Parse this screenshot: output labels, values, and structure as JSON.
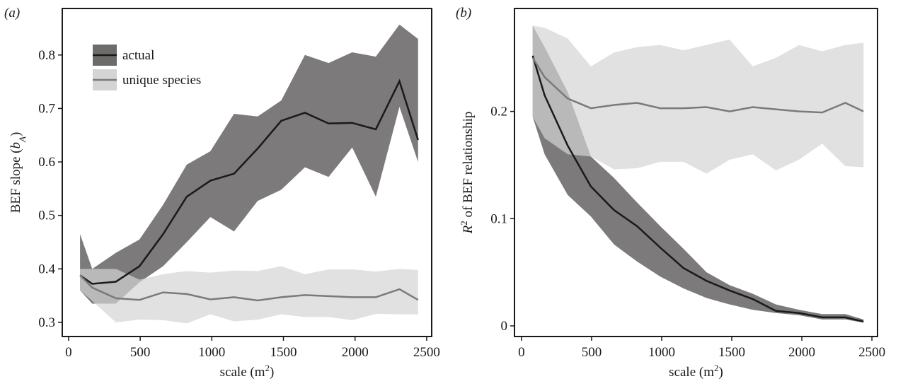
{
  "chart_data": [
    {
      "type": "line",
      "panel_label": "(a)",
      "x_label": [
        {
          "text": "scale (m"
        },
        {
          "text": "2",
          "sup": true
        },
        {
          "text": ")"
        }
      ],
      "y_label": [
        {
          "text": "BEF slope ("
        },
        {
          "text": "b",
          "italic": true
        },
        {
          "text": "A",
          "sub": true,
          "italic": true
        },
        {
          "text": ")"
        }
      ],
      "x": [
        80,
        165,
        330,
        495,
        660,
        825,
        990,
        1155,
        1320,
        1485,
        1650,
        1815,
        1980,
        2145,
        2310,
        2440
      ],
      "xlim": [
        -44,
        2535
      ],
      "xticks": [
        0,
        500,
        1000,
        1500,
        2000,
        2500
      ],
      "ylim": [
        0.2735,
        0.887
      ],
      "yticks": [
        0.3,
        0.4,
        0.5,
        0.6,
        0.7,
        0.8
      ],
      "legend": "upper left",
      "series": [
        {
          "name": "actual",
          "color": "#1a1a1a",
          "band_color": "#6e6b6b",
          "values": [
            0.388,
            0.372,
            0.376,
            0.405,
            0.465,
            0.535,
            0.565,
            0.578,
            0.625,
            0.677,
            0.692,
            0.672,
            0.673,
            0.661,
            0.751,
            0.641
          ],
          "upper": [
            0.465,
            0.4,
            0.43,
            0.455,
            0.52,
            0.595,
            0.62,
            0.69,
            0.685,
            0.715,
            0.8,
            0.785,
            0.805,
            0.797,
            0.857,
            0.83
          ],
          "lower": [
            0.36,
            0.335,
            0.335,
            0.375,
            0.405,
            0.45,
            0.497,
            0.47,
            0.527,
            0.548,
            0.59,
            0.572,
            0.627,
            0.535,
            0.703,
            0.6
          ]
        },
        {
          "name": "unique species",
          "color": "#7a7a7a",
          "band_color": "#d4d4d4",
          "values": [
            0.388,
            0.365,
            0.345,
            0.342,
            0.356,
            0.353,
            0.343,
            0.347,
            0.341,
            0.347,
            0.351,
            0.349,
            0.347,
            0.347,
            0.362,
            0.342
          ],
          "upper": [
            0.4,
            0.4,
            0.4,
            0.38,
            0.39,
            0.396,
            0.393,
            0.397,
            0.396,
            0.405,
            0.39,
            0.399,
            0.399,
            0.395,
            0.4,
            0.398
          ],
          "lower": [
            0.36,
            0.34,
            0.3,
            0.305,
            0.304,
            0.298,
            0.315,
            0.302,
            0.305,
            0.315,
            0.31,
            0.31,
            0.304,
            0.316,
            0.315,
            0.315
          ]
        }
      ]
    },
    {
      "type": "line",
      "panel_label": "(b)",
      "x_label": [
        {
          "text": "scale (m"
        },
        {
          "text": "2",
          "sup": true
        },
        {
          "text": ")"
        }
      ],
      "y_label": [
        {
          "text": "R",
          "italic": true
        },
        {
          "text": "2",
          "sup": true
        },
        {
          "text": " of BEF relationship"
        }
      ],
      "x": [
        80,
        165,
        330,
        495,
        660,
        825,
        990,
        1155,
        1320,
        1485,
        1650,
        1815,
        1980,
        2145,
        2310,
        2440
      ],
      "xlim": [
        -50,
        2540
      ],
      "xticks": [
        0,
        500,
        1000,
        1500,
        2000,
        2500
      ],
      "ylim": [
        -0.0099,
        0.296
      ],
      "yticks": [
        0,
        0.1,
        0.2
      ],
      "series": [
        {
          "color": "#1a1a1a",
          "band_color": "#6e6b6b",
          "values": [
            0.252,
            0.215,
            0.168,
            0.13,
            0.108,
            0.093,
            0.073,
            0.054,
            0.042,
            0.033,
            0.025,
            0.014,
            0.012,
            0.008,
            0.008,
            0.004
          ],
          "upper": [
            0.28,
            0.26,
            0.218,
            0.158,
            0.138,
            0.115,
            0.093,
            0.072,
            0.05,
            0.038,
            0.03,
            0.02,
            0.015,
            0.011,
            0.011,
            0.006
          ],
          "lower": [
            0.195,
            0.16,
            0.122,
            0.102,
            0.076,
            0.06,
            0.046,
            0.035,
            0.026,
            0.02,
            0.015,
            0.012,
            0.01,
            0.006,
            0.006,
            0.003
          ]
        },
        {
          "color": "#7a7a7a",
          "band_color": "#d4d4d4",
          "values": [
            0.25,
            0.232,
            0.212,
            0.203,
            0.206,
            0.208,
            0.203,
            0.203,
            0.204,
            0.2,
            0.204,
            0.202,
            0.2,
            0.199,
            0.208,
            0.2
          ],
          "upper": [
            0.28,
            0.278,
            0.268,
            0.242,
            0.255,
            0.26,
            0.262,
            0.257,
            0.262,
            0.267,
            0.242,
            0.25,
            0.262,
            0.256,
            0.262,
            0.264
          ],
          "lower": [
            0.195,
            0.175,
            0.16,
            0.158,
            0.146,
            0.147,
            0.153,
            0.153,
            0.142,
            0.155,
            0.16,
            0.145,
            0.155,
            0.17,
            0.149,
            0.148
          ]
        }
      ]
    }
  ]
}
